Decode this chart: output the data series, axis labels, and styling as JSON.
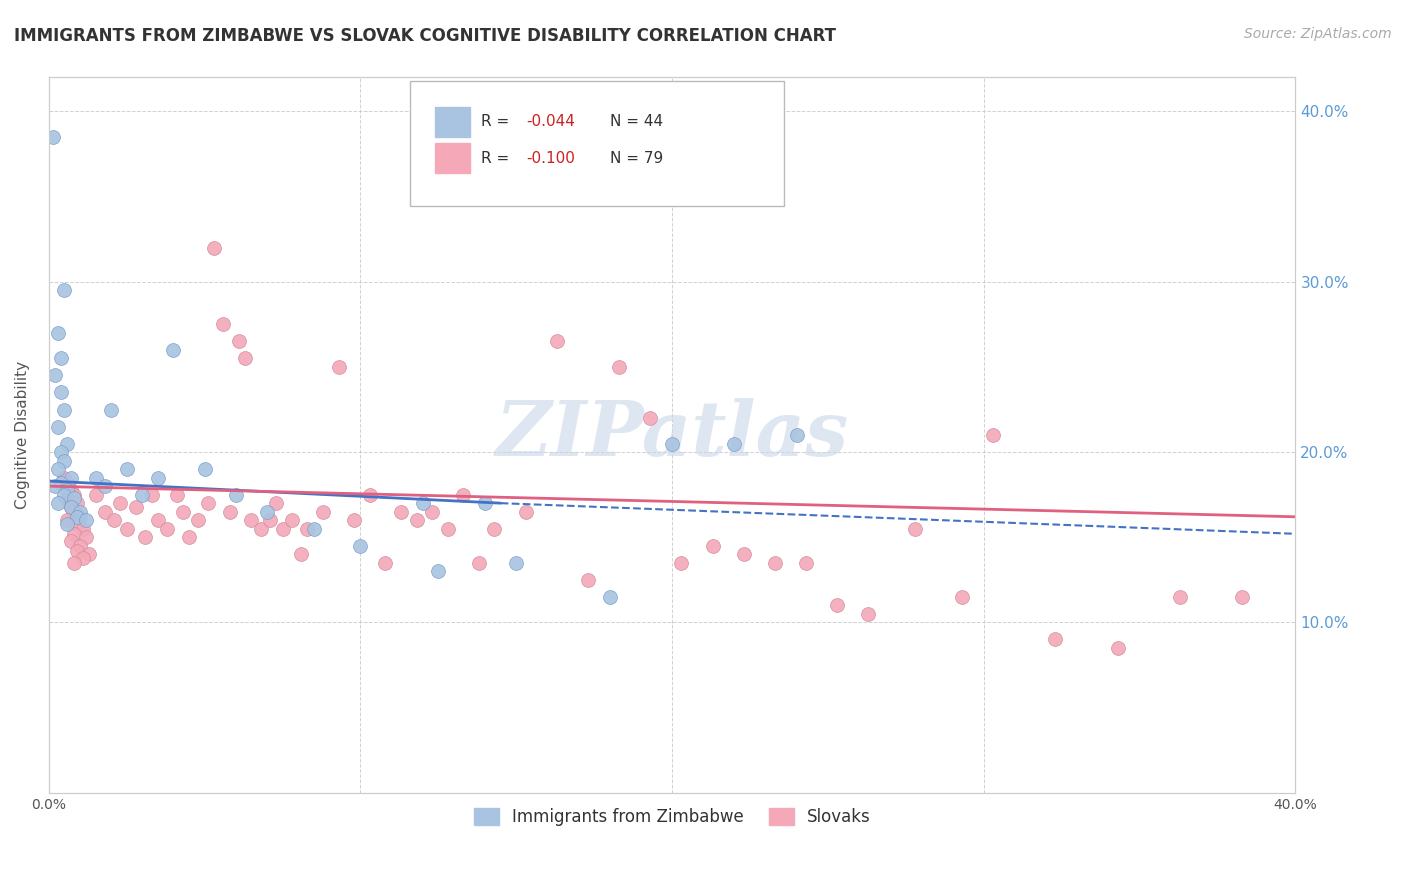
{
  "title": "IMMIGRANTS FROM ZIMBABWE VS SLOVAK COGNITIVE DISABILITY CORRELATION CHART",
  "source": "Source: ZipAtlas.com",
  "ylabel": "Cognitive Disability",
  "xlim": [
    0.0,
    40.0
  ],
  "ylim": [
    0.0,
    42.0
  ],
  "yticks": [
    10.0,
    20.0,
    30.0,
    40.0
  ],
  "xticks_show": [
    0.0,
    40.0
  ],
  "legend_label_blue": "Immigrants from Zimbabwe",
  "legend_label_pink": "Slovaks",
  "blue_color": "#a8c4e0",
  "pink_color": "#f4a8b8",
  "trend_blue_color": "#4472c4",
  "trend_pink_color": "#e06080",
  "watermark": "ZIPatlas",
  "blue_scatter": [
    [
      0.15,
      38.5
    ],
    [
      0.5,
      29.5
    ],
    [
      0.3,
      27.0
    ],
    [
      0.4,
      25.5
    ],
    [
      0.2,
      24.5
    ],
    [
      0.4,
      23.5
    ],
    [
      0.5,
      22.5
    ],
    [
      0.3,
      21.5
    ],
    [
      0.6,
      20.5
    ],
    [
      0.4,
      20.0
    ],
    [
      0.5,
      19.5
    ],
    [
      0.3,
      19.0
    ],
    [
      0.7,
      18.5
    ],
    [
      0.4,
      18.2
    ],
    [
      0.2,
      18.0
    ],
    [
      0.6,
      17.8
    ],
    [
      0.5,
      17.5
    ],
    [
      0.8,
      17.3
    ],
    [
      0.3,
      17.0
    ],
    [
      0.7,
      16.8
    ],
    [
      1.0,
      16.5
    ],
    [
      0.9,
      16.2
    ],
    [
      1.2,
      16.0
    ],
    [
      0.6,
      15.8
    ],
    [
      1.5,
      18.5
    ],
    [
      1.8,
      18.0
    ],
    [
      2.0,
      22.5
    ],
    [
      2.5,
      19.0
    ],
    [
      3.0,
      17.5
    ],
    [
      3.5,
      18.5
    ],
    [
      4.0,
      26.0
    ],
    [
      5.0,
      19.0
    ],
    [
      6.0,
      17.5
    ],
    [
      7.0,
      16.5
    ],
    [
      8.5,
      15.5
    ],
    [
      10.0,
      14.5
    ],
    [
      12.0,
      17.0
    ],
    [
      12.5,
      13.0
    ],
    [
      14.0,
      17.0
    ],
    [
      15.0,
      13.5
    ],
    [
      18.0,
      11.5
    ],
    [
      20.0,
      20.5
    ],
    [
      22.0,
      20.5
    ],
    [
      24.0,
      21.0
    ]
  ],
  "pink_scatter": [
    [
      0.5,
      18.5
    ],
    [
      0.6,
      18.2
    ],
    [
      0.7,
      17.8
    ],
    [
      0.8,
      17.5
    ],
    [
      0.6,
      17.2
    ],
    [
      0.9,
      17.0
    ],
    [
      0.7,
      16.8
    ],
    [
      0.8,
      16.5
    ],
    [
      1.0,
      16.2
    ],
    [
      0.6,
      16.0
    ],
    [
      0.9,
      15.8
    ],
    [
      1.1,
      15.5
    ],
    [
      0.8,
      15.2
    ],
    [
      1.2,
      15.0
    ],
    [
      0.7,
      14.8
    ],
    [
      1.0,
      14.5
    ],
    [
      0.9,
      14.2
    ],
    [
      1.3,
      14.0
    ],
    [
      1.1,
      13.8
    ],
    [
      0.8,
      13.5
    ],
    [
      1.5,
      17.5
    ],
    [
      1.8,
      16.5
    ],
    [
      2.1,
      16.0
    ],
    [
      2.3,
      17.0
    ],
    [
      2.5,
      15.5
    ],
    [
      2.8,
      16.8
    ],
    [
      3.1,
      15.0
    ],
    [
      3.3,
      17.5
    ],
    [
      3.5,
      16.0
    ],
    [
      3.8,
      15.5
    ],
    [
      4.1,
      17.5
    ],
    [
      4.3,
      16.5
    ],
    [
      4.5,
      15.0
    ],
    [
      4.8,
      16.0
    ],
    [
      5.1,
      17.0
    ],
    [
      5.3,
      32.0
    ],
    [
      5.6,
      27.5
    ],
    [
      5.8,
      16.5
    ],
    [
      6.1,
      26.5
    ],
    [
      6.3,
      25.5
    ],
    [
      6.5,
      16.0
    ],
    [
      6.8,
      15.5
    ],
    [
      7.1,
      16.0
    ],
    [
      7.3,
      17.0
    ],
    [
      7.5,
      15.5
    ],
    [
      7.8,
      16.0
    ],
    [
      8.1,
      14.0
    ],
    [
      8.3,
      15.5
    ],
    [
      8.8,
      16.5
    ],
    [
      9.3,
      25.0
    ],
    [
      9.8,
      16.0
    ],
    [
      10.3,
      17.5
    ],
    [
      10.8,
      13.5
    ],
    [
      11.3,
      16.5
    ],
    [
      11.8,
      16.0
    ],
    [
      12.3,
      16.5
    ],
    [
      12.8,
      15.5
    ],
    [
      13.3,
      17.5
    ],
    [
      13.8,
      13.5
    ],
    [
      14.3,
      15.5
    ],
    [
      15.3,
      16.5
    ],
    [
      16.3,
      26.5
    ],
    [
      17.3,
      12.5
    ],
    [
      18.3,
      25.0
    ],
    [
      19.3,
      22.0
    ],
    [
      20.3,
      13.5
    ],
    [
      21.3,
      14.5
    ],
    [
      22.3,
      14.0
    ],
    [
      23.3,
      13.5
    ],
    [
      24.3,
      13.5
    ],
    [
      25.3,
      11.0
    ],
    [
      26.3,
      10.5
    ],
    [
      27.8,
      15.5
    ],
    [
      29.3,
      11.5
    ],
    [
      30.3,
      21.0
    ],
    [
      32.3,
      9.0
    ],
    [
      34.3,
      8.5
    ],
    [
      36.3,
      11.5
    ],
    [
      38.3,
      11.5
    ]
  ],
  "trend_blue": {
    "x_start": 0.0,
    "y_start": 18.3,
    "x_end": 14.5,
    "y_end": 17.0
  },
  "trend_blue_dashed": {
    "x_start": 14.5,
    "y_start": 17.0,
    "x_end": 40.0,
    "y_end": 15.2
  },
  "trend_pink": {
    "x_start": 0.0,
    "y_start": 18.0,
    "x_end": 40.0,
    "y_end": 16.2
  }
}
